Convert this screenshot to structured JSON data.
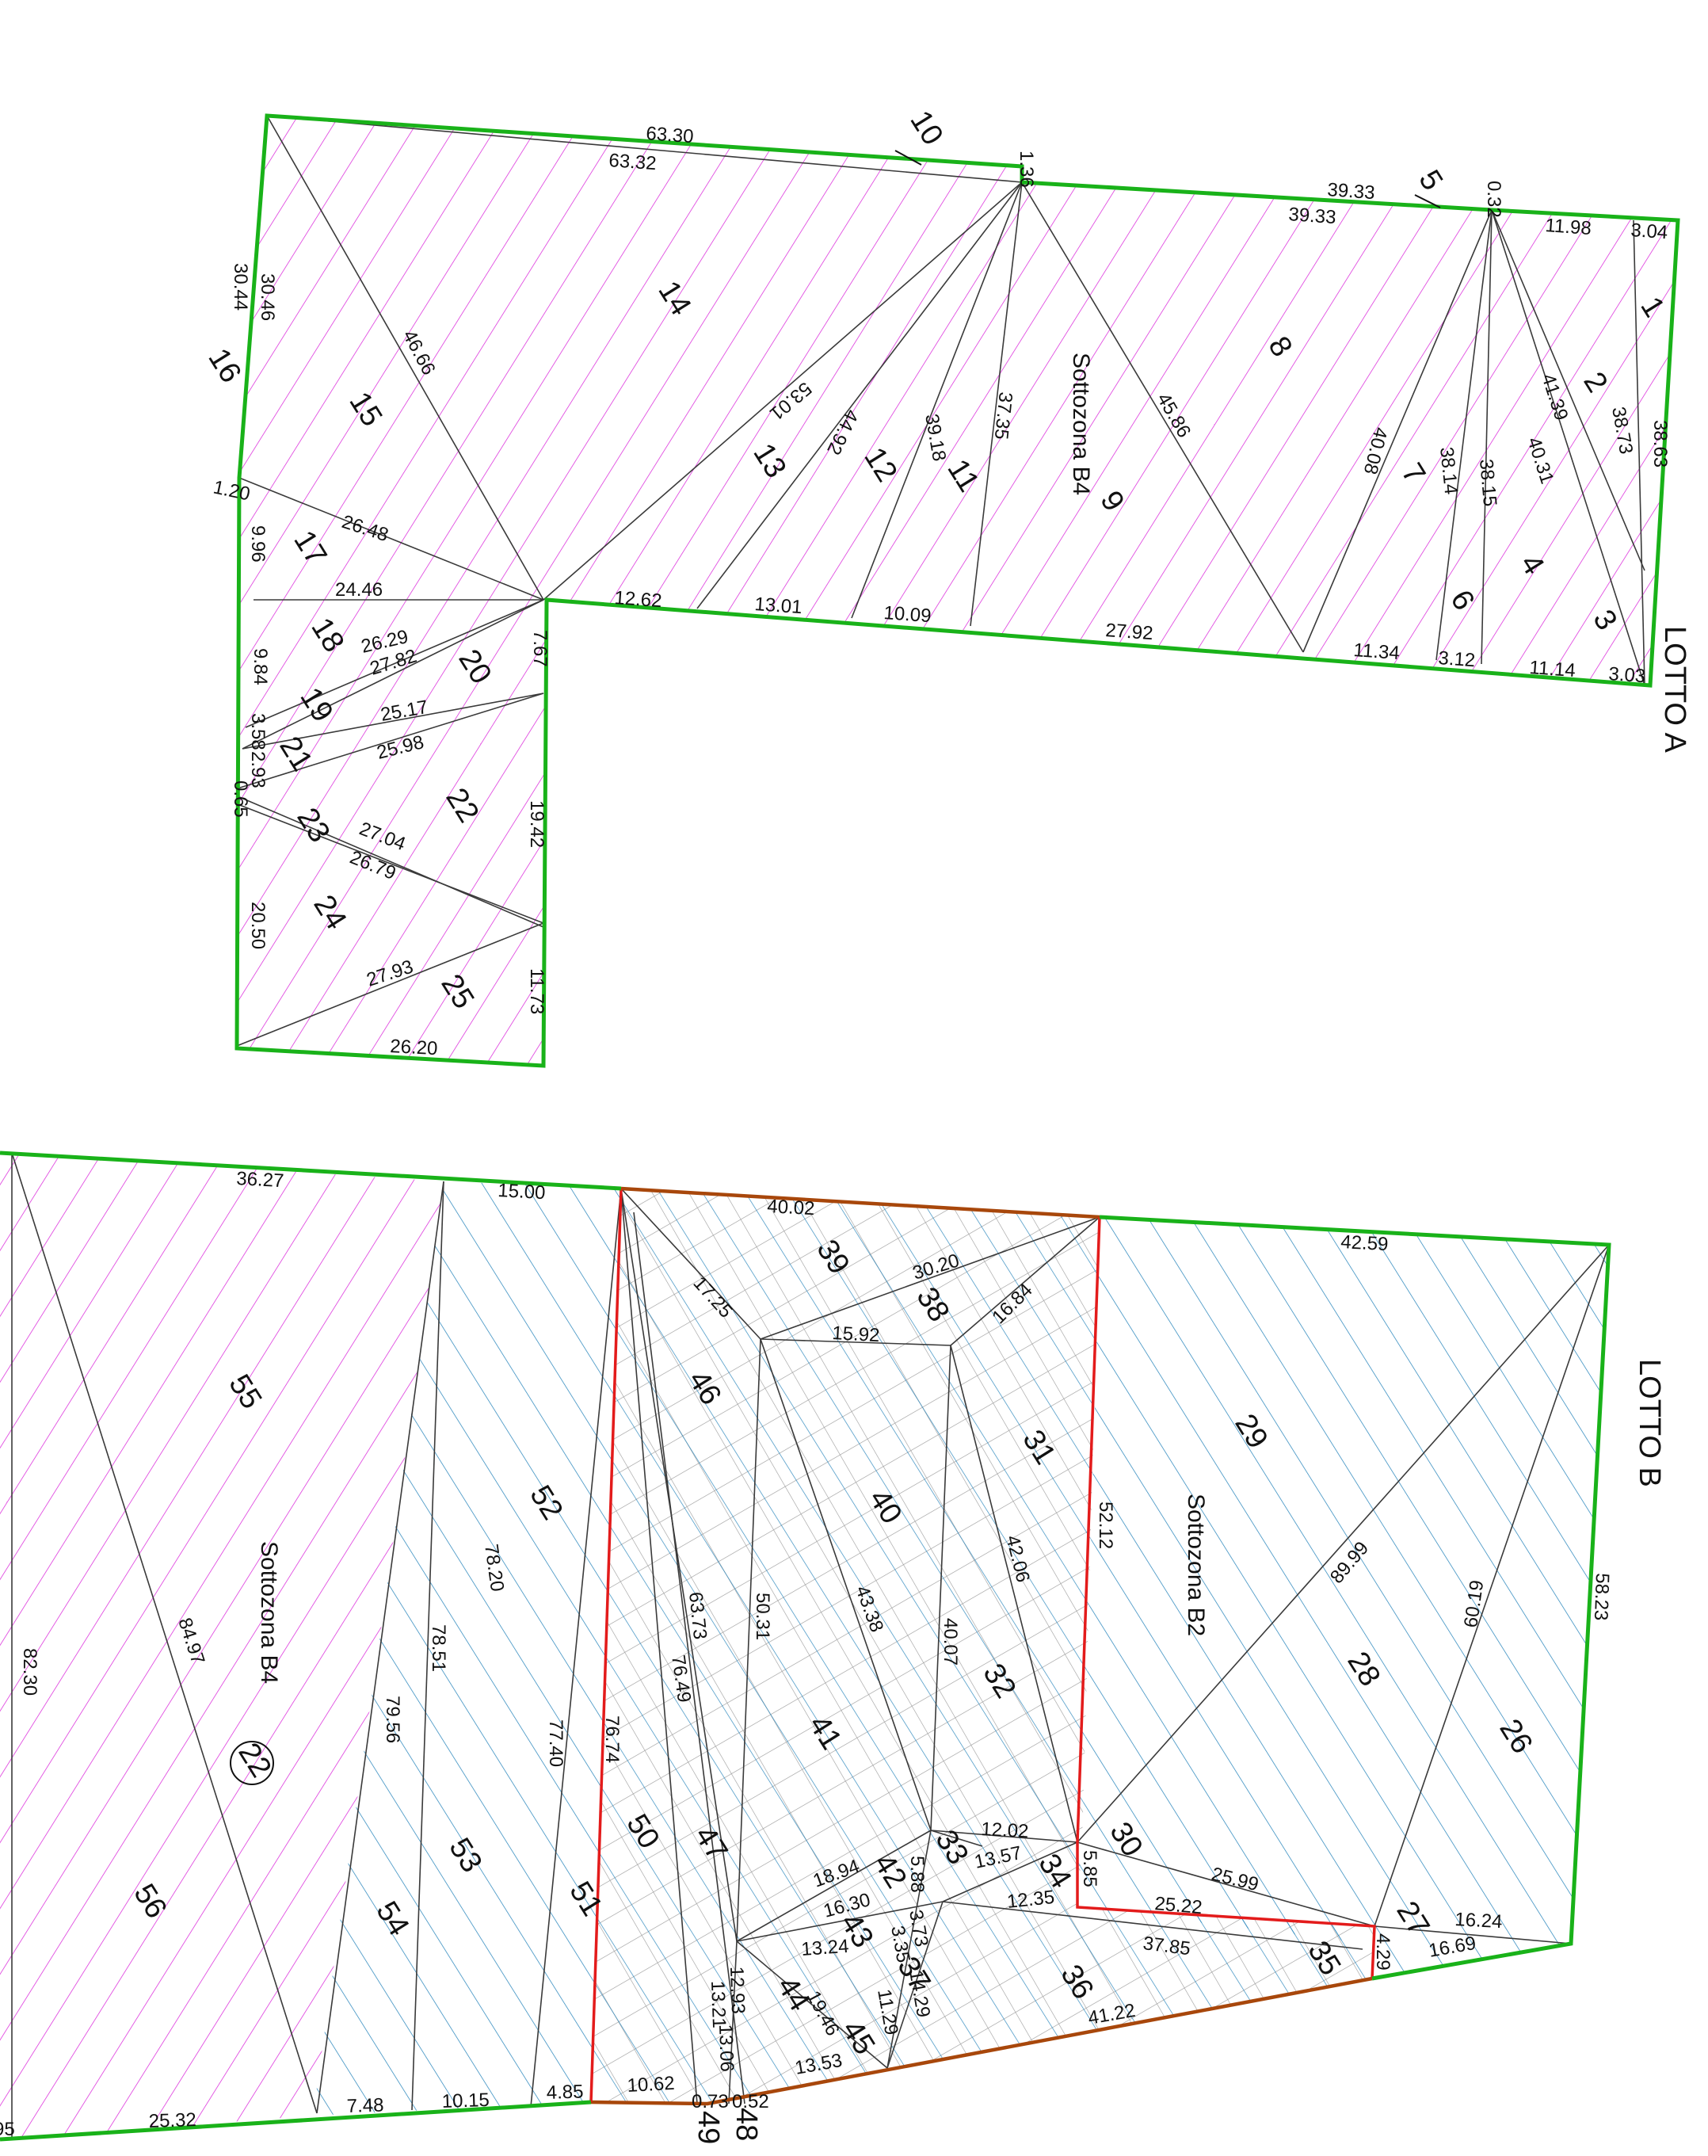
{
  "lotto_a": {
    "label": "LOTTO A",
    "zone": "Sottozona B4",
    "parcels": [
      "1",
      "2",
      "3",
      "4",
      "5",
      "6",
      "7",
      "8",
      "9",
      "10",
      "11",
      "12",
      "13",
      "14",
      "15",
      "16",
      "17",
      "18",
      "19",
      "20",
      "21",
      "22",
      "23",
      "24",
      "25"
    ],
    "measures": [
      "63.30",
      "63.32",
      "1.36",
      "39.33",
      "39.33",
      "0.32",
      "11.98",
      "3.04",
      "38.63",
      "38.73",
      "41.39",
      "40.31",
      "38.15",
      "38.14",
      "40.08",
      "45.86",
      "37.35",
      "39.18",
      "44.92",
      "53.01",
      "46.66",
      "30.46",
      "30.44",
      "1.20",
      "26.48",
      "9.96",
      "24.46",
      "12.62",
      "13.01",
      "10.09",
      "27.92",
      "11.34",
      "3.12",
      "11.14",
      "3.03",
      "26.29",
      "27.82",
      "7.67",
      "9.84",
      "25.17",
      "3.58",
      "2.93",
      "25.98",
      "0.65",
      "19.42",
      "27.04",
      "26.79",
      "20.50",
      "27.93",
      "11.73",
      "26.20"
    ]
  },
  "lotto_b": {
    "label": "LOTTO B",
    "zone_b2": "Sottozona B2",
    "zone_b4": "Sottozona B4",
    "circled": "22",
    "parcels": [
      "26",
      "27",
      "28",
      "29",
      "30",
      "31",
      "32",
      "33",
      "34",
      "35",
      "36",
      "37",
      "38",
      "39",
      "40",
      "41",
      "42",
      "43",
      "44",
      "45",
      "46",
      "47",
      "48",
      "49",
      "50",
      "51",
      "52",
      "53",
      "54",
      "55",
      "56"
    ],
    "measures": [
      "36.27",
      "15.00",
      "40.02",
      "42.59",
      "30.20",
      "16.84",
      "17.25",
      "15.92",
      "52.12",
      "58.23",
      "89.99",
      "60.19",
      "42.06",
      "43.38",
      "50.31",
      "63.73",
      "76.49",
      "40.07",
      "12.02",
      "13.57",
      "5.85",
      "12.35",
      "25.99",
      "25.22",
      "16.24",
      "16.69",
      "4.29",
      "37.85",
      "41.22",
      "18.94",
      "16.30",
      "5.88",
      "3.73",
      "3.35",
      "13.24",
      "12.93",
      "13.21",
      "13.06",
      "19.46",
      "11.29",
      "14.29",
      "13.53",
      "10.62",
      "0.73",
      "0.52",
      "4.85",
      "10.15",
      "7.48",
      "25.32",
      "76.74",
      "77.40",
      "78.51",
      "79.56",
      "78.20",
      "84.97",
      "82.30",
      "95"
    ]
  }
}
